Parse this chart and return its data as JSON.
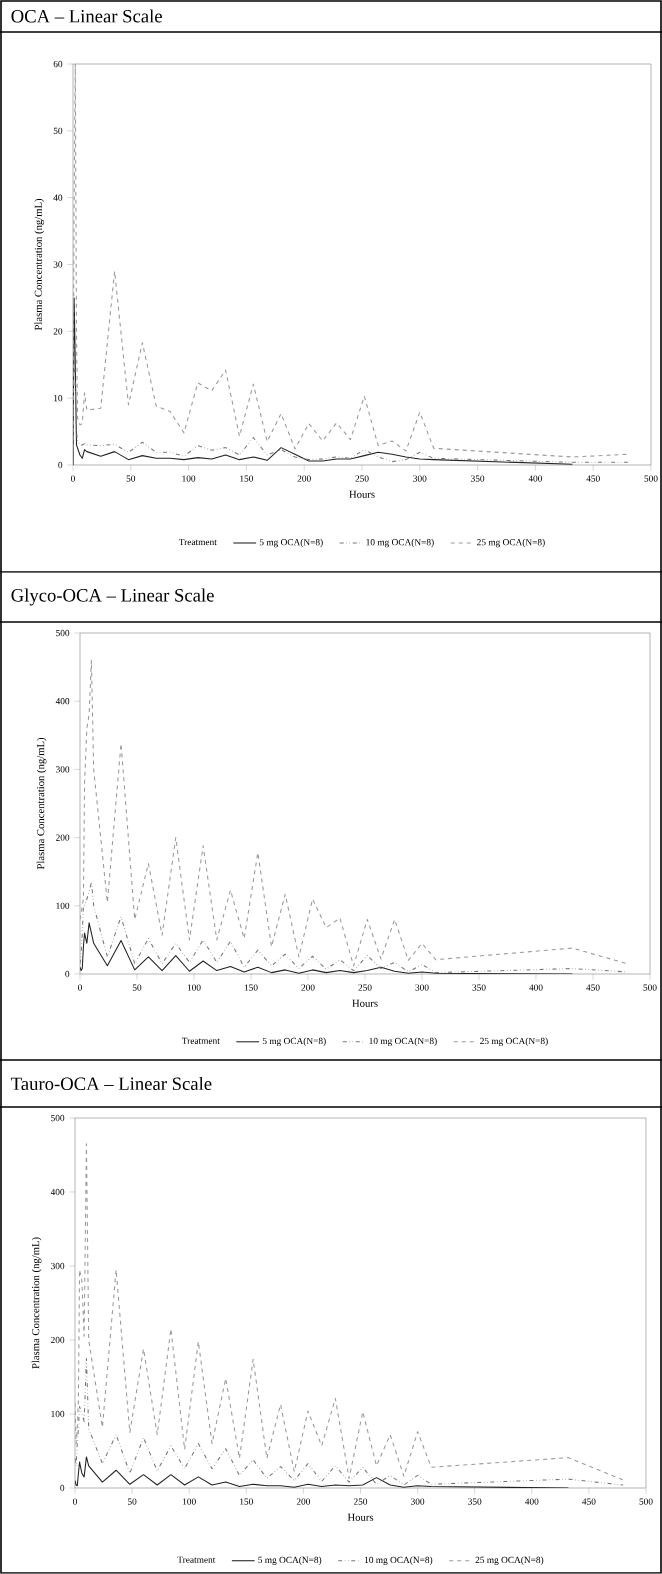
{
  "chart_data": [
    {
      "type": "line",
      "title": "OCA – Linear Scale",
      "xlabel": "Hours",
      "ylabel": "Plasma Concentration (ng/mL)",
      "legend_title": "Treatment",
      "legend": "bottom",
      "grid": false,
      "x": [
        0,
        1,
        2,
        3,
        4,
        6,
        8,
        10,
        12,
        24,
        36,
        48,
        60,
        72,
        84,
        96,
        108,
        120,
        132,
        144,
        156,
        168,
        180,
        192,
        204,
        216,
        228,
        240,
        252,
        264,
        276,
        288,
        300,
        312,
        432,
        480
      ],
      "xlim": [
        0,
        500
      ],
      "xticks": [
        0,
        50,
        100,
        150,
        200,
        250,
        300,
        350,
        400,
        450,
        500
      ],
      "ylim": [
        0,
        60
      ],
      "yticks": [
        0,
        10,
        20,
        30,
        40,
        50,
        60
      ],
      "series": [
        {
          "name": "5 mg OCA(N=8)",
          "color": "#222222",
          "line_style": "solid",
          "values": [
            0,
            25,
            15,
            3,
            2.5,
            1.5,
            1,
            2.3,
            2.0,
            1.3,
            2.0,
            0.8,
            1.4,
            1.0,
            1.0,
            0.8,
            1.1,
            0.9,
            1.5,
            0.8,
            1.2,
            0.7,
            2.6,
            1.6,
            0.6,
            0.6,
            0.9,
            0.9,
            1.4,
            1.9,
            1.6,
            1.2,
            0.9,
            0.8,
            0.1,
            null
          ]
        },
        {
          "name": "10 mg OCA(N=8)",
          "color": "#777777",
          "line_style": "dashdotdot",
          "values": [
            2,
            18,
            12,
            5,
            3.5,
            3,
            3,
            3.2,
            3,
            2.9,
            3.1,
            1.9,
            3.4,
            1.9,
            1.9,
            1.3,
            2.9,
            2.2,
            2.6,
            1.5,
            4.1,
            1.5,
            2.3,
            1.2,
            0.8,
            0.9,
            1.2,
            1.0,
            2.3,
            1.2,
            0.5,
            0.8,
            1.9,
            1.0,
            0.4,
            0.4
          ]
        },
        {
          "name": "25 mg OCA(N=8)",
          "color": "#999999",
          "line_style": "dashed",
          "values": [
            2.5,
            40,
            60,
            20,
            7,
            6,
            6.2,
            10.8,
            8.2,
            8.5,
            29,
            9,
            18.3,
            8.8,
            8.0,
            4.8,
            12.3,
            11.1,
            14.2,
            4.3,
            12.1,
            3.5,
            7.7,
            2.4,
            6.2,
            3.6,
            6.3,
            3.8,
            10.3,
            2.9,
            3.6,
            2.1,
            7.9,
            2.5,
            1.2,
            1.6
          ]
        }
      ]
    },
    {
      "type": "line",
      "title": "Glyco-OCA – Linear Scale",
      "xlabel": "Hours",
      "ylabel": "Plasma Concentration (ng/mL)",
      "legend_title": "Treatment",
      "legend": "bottom",
      "grid": false,
      "x": [
        0,
        1,
        2,
        3,
        4,
        6,
        8,
        10,
        12,
        24,
        36,
        48,
        60,
        72,
        84,
        96,
        108,
        120,
        132,
        144,
        156,
        168,
        180,
        192,
        204,
        216,
        228,
        240,
        252,
        264,
        276,
        288,
        300,
        312,
        432,
        480
      ],
      "xlim": [
        0,
        500
      ],
      "xticks": [
        0,
        50,
        100,
        150,
        200,
        250,
        300,
        350,
        400,
        450,
        500
      ],
      "ylim": [
        0,
        500
      ],
      "yticks": [
        0,
        100,
        200,
        300,
        400,
        500
      ],
      "series": [
        {
          "name": "5 mg OCA(N=8)",
          "color": "#222222",
          "line_style": "solid",
          "values": [
            10,
            5,
            8,
            40,
            60,
            45,
            75,
            60,
            45,
            12,
            49,
            6,
            25,
            5,
            27,
            4,
            19,
            5,
            11,
            3,
            10,
            2,
            6,
            1,
            6,
            2,
            5,
            2,
            5,
            10,
            4,
            1,
            3,
            1,
            0,
            null
          ]
        },
        {
          "name": "10 mg OCA(N=8)",
          "color": "#777777",
          "line_style": "dashdotdot",
          "values": [
            15,
            30,
            60,
            100,
            100,
            110,
            120,
            135,
            100,
            25,
            84,
            15,
            52,
            15,
            45,
            17,
            50,
            17,
            48,
            10,
            35,
            12,
            29,
            8,
            26,
            7,
            21,
            5,
            27,
            8,
            17,
            3,
            14,
            2,
            8,
            3
          ]
        },
        {
          "name": "25 mg OCA(N=8)",
          "color": "#999999",
          "line_style": "dashed",
          "values": [
            80,
            90,
            100,
            110,
            280,
            360,
            380,
            460,
            300,
            105,
            338,
            80,
            162,
            57,
            200,
            50,
            188,
            50,
            123,
            52,
            178,
            40,
            117,
            25,
            110,
            68,
            82,
            12,
            80,
            22,
            80,
            20,
            45,
            21,
            38,
            15
          ]
        }
      ]
    },
    {
      "type": "line",
      "title": "Tauro-OCA – Linear Scale",
      "xlabel": "Hours",
      "ylabel": "Plasma Concentration (ng/mL)",
      "legend_title": "Treatment",
      "legend": "bottom",
      "grid": false,
      "x": [
        0,
        1,
        2,
        3,
        4,
        6,
        8,
        10,
        12,
        24,
        36,
        48,
        60,
        72,
        84,
        96,
        108,
        120,
        132,
        144,
        156,
        168,
        180,
        192,
        204,
        216,
        228,
        240,
        252,
        264,
        276,
        288,
        300,
        312,
        432,
        480
      ],
      "xlim": [
        0,
        500
      ],
      "xticks": [
        0,
        50,
        100,
        150,
        200,
        250,
        300,
        350,
        400,
        450,
        500
      ],
      "ylim": [
        0,
        500
      ],
      "yticks": [
        0,
        100,
        200,
        300,
        400,
        500
      ],
      "series": [
        {
          "name": "5 mg OCA(N=8)",
          "color": "#222222",
          "line_style": "solid",
          "values": [
            10,
            4,
            3,
            20,
            35,
            20,
            15,
            42,
            30,
            8,
            24,
            5,
            18,
            4,
            18,
            4,
            15,
            4,
            8,
            2,
            5,
            3,
            3,
            1,
            5,
            2,
            4,
            3,
            4,
            14,
            4,
            1,
            3,
            2,
            0,
            null
          ]
        },
        {
          "name": "10 mg OCA(N=8)",
          "color": "#777777",
          "line_style": "dashdotdot",
          "values": [
            40,
            30,
            60,
            80,
            110,
            100,
            90,
            175,
            80,
            33,
            72,
            20,
            68,
            23,
            57,
            26,
            60,
            26,
            53,
            17,
            38,
            13,
            29,
            10,
            33,
            9,
            30,
            8,
            28,
            5,
            17,
            4,
            17,
            5,
            12,
            4
          ]
        },
        {
          "name": "25 mg OCA(N=8)",
          "color": "#999999",
          "line_style": "dashed",
          "values": [
            115,
            60,
            80,
            120,
            295,
            280,
            205,
            465,
            200,
            82,
            295,
            75,
            188,
            72,
            215,
            52,
            198,
            60,
            148,
            40,
            174,
            40,
            113,
            22,
            104,
            57,
            121,
            13,
            103,
            30,
            72,
            16,
            76,
            28,
            41,
            11
          ]
        }
      ]
    }
  ]
}
